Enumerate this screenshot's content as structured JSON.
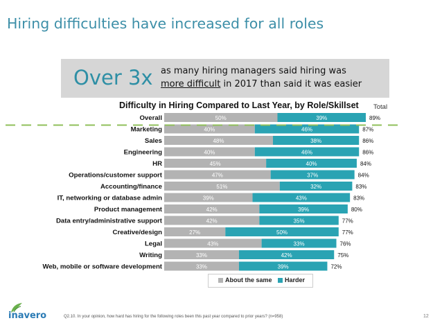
{
  "slide": {
    "title": "Hiring difficulties have increased for all roles",
    "page_number": "12",
    "footnote": "Q2.10. In your opinion, how hard has hiring for the following roles been this past year compared to prior years? (n=958)",
    "logo_text": "inavero",
    "colors": {
      "title": "#3d8fa8",
      "callout_bg": "#d6d6d6",
      "same": "#b3b3b3",
      "harder": "#2aa3b3",
      "dashed_line": "#8fbf5a"
    }
  },
  "callout": {
    "big": "Over 3x",
    "line1": "as many hiring managers said hiring was",
    "line2_underlined": "more difficult",
    "line2_rest": " in 2017 than said it was easier"
  },
  "chart_data": {
    "type": "bar",
    "orientation": "horizontal",
    "stacked": true,
    "title": "Difficulty in Hiring Compared to Last Year, by Role/Skillset",
    "total_header": "Total",
    "categories": [
      "Overall",
      "Marketing",
      "Sales",
      "Engineering",
      "HR",
      "Operations/customer support",
      "Accounting/finance",
      "IT, networking or database admin",
      "Product management",
      "Data entry/administrative support",
      "Creative/design",
      "Legal",
      "Writing",
      "Web, mobile or software development"
    ],
    "series": [
      {
        "name": "About the same",
        "values": [
          50,
          40,
          48,
          40,
          45,
          47,
          51,
          39,
          42,
          42,
          27,
          43,
          33,
          33
        ],
        "labels": [
          "50%",
          "40%",
          "48%",
          "40%",
          "45%",
          "47%",
          "51%",
          "39%",
          "42%",
          "42%",
          "27%",
          "43%",
          "33%",
          "33%"
        ]
      },
      {
        "name": "Harder",
        "values": [
          39,
          46,
          38,
          46,
          40,
          37,
          32,
          43,
          39,
          35,
          50,
          33,
          42,
          39
        ],
        "labels": [
          "39%",
          "46%",
          "38%",
          "46%",
          "40%",
          "37%",
          "32%",
          "43%",
          "39%",
          "35%",
          "50%",
          "33%",
          "42%",
          "39%"
        ]
      }
    ],
    "totals": [
      "89%",
      "87%",
      "86%",
      "86%",
      "84%",
      "84%",
      "83%",
      "83%",
      "80%",
      "77%",
      "77%",
      "76%",
      "75%",
      "72%"
    ],
    "xlim": [
      0,
      100
    ],
    "legend_position": "bottom"
  }
}
